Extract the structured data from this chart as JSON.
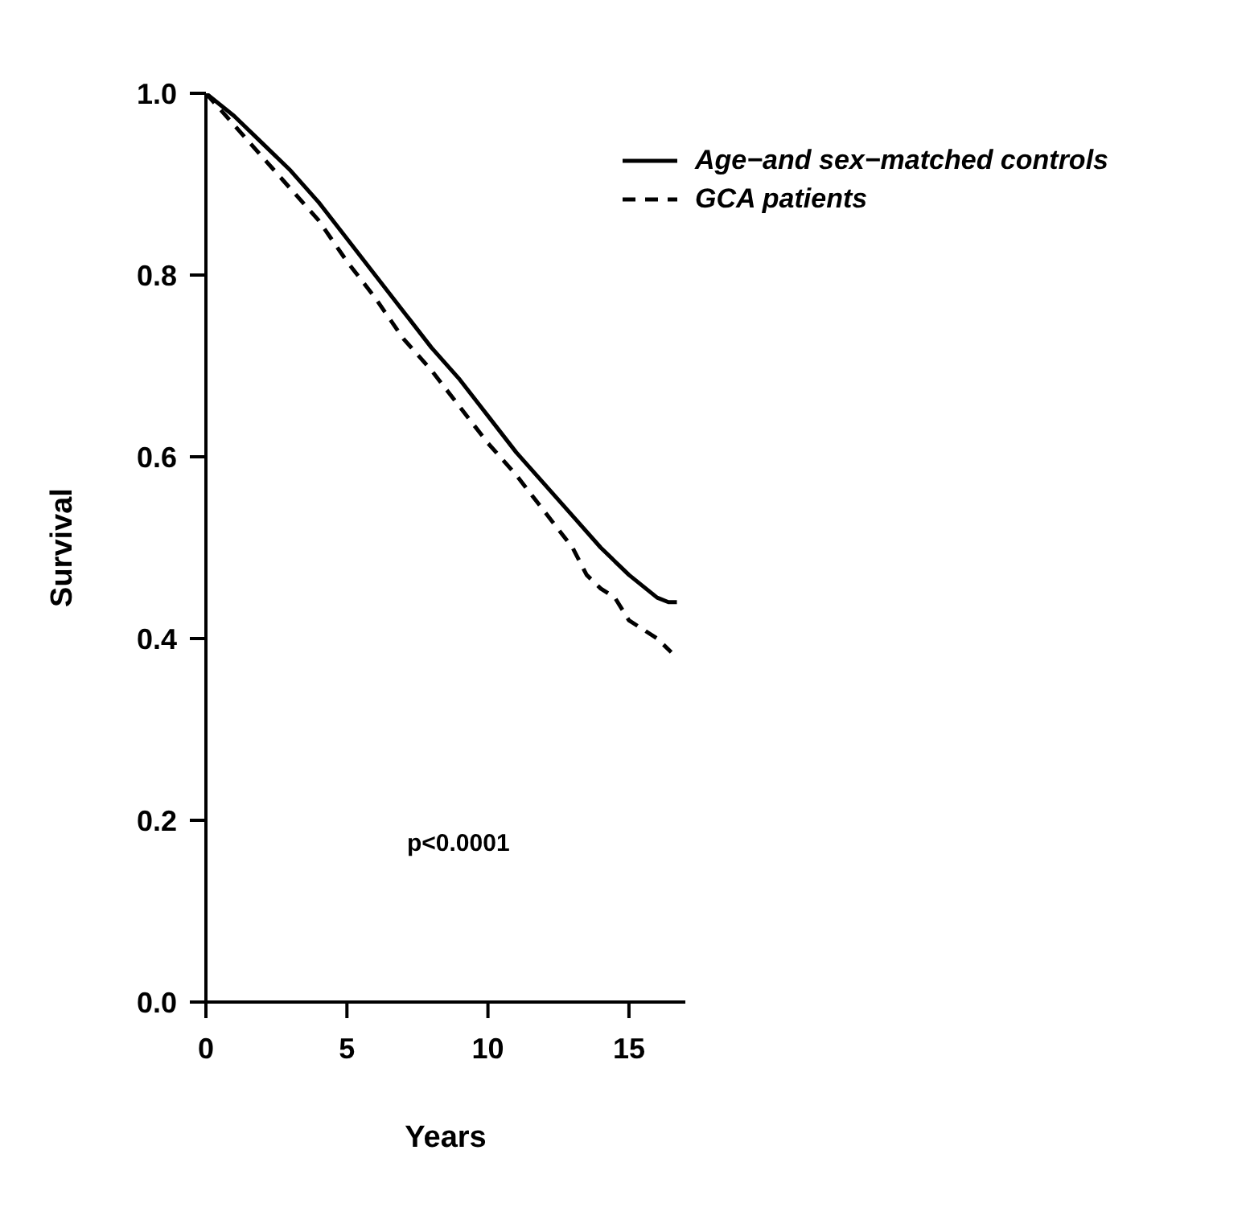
{
  "chart_data": {
    "type": "line",
    "xlabel": "Years",
    "ylabel": "Survival",
    "xlim": [
      0,
      17
    ],
    "xticks": [
      0,
      5,
      10,
      15
    ],
    "ylim": [
      0,
      1
    ],
    "yticks": [
      {
        "value": 0,
        "label": "0.0"
      },
      {
        "value": 0.2,
        "label": "0.2"
      },
      {
        "value": 0.4,
        "label": "0.4"
      },
      {
        "value": 0.6,
        "label": "0.6"
      },
      {
        "value": 0.8,
        "label": "0.8"
      },
      {
        "value": 1,
        "label": "1.0"
      }
    ],
    "grid": false,
    "legend": "top right",
    "marker": "none",
    "annotations": [
      "p<0.0001"
    ],
    "series": [
      {
        "name": "Age−and sex−matched controls",
        "color": "#000000",
        "line_style": "solid",
        "x": [
          0,
          1,
          2,
          3,
          4,
          5,
          6,
          7,
          8,
          9,
          10,
          11,
          12,
          13,
          14,
          15,
          16,
          16.4,
          16.7
        ],
        "values": [
          1.0,
          0.975,
          0.945,
          0.915,
          0.88,
          0.84,
          0.8,
          0.76,
          0.72,
          0.685,
          0.645,
          0.605,
          0.57,
          0.535,
          0.5,
          0.47,
          0.445,
          0.44,
          0.44
        ]
      },
      {
        "name": "GCA patients",
        "color": "#000000",
        "line_style": "dashed",
        "x": [
          0,
          1,
          2,
          3,
          4,
          5,
          6,
          7,
          8,
          9,
          10,
          11,
          12,
          13,
          13.5,
          14,
          14.5,
          15,
          16,
          16.5
        ],
        "values": [
          1.0,
          0.965,
          0.93,
          0.895,
          0.86,
          0.815,
          0.775,
          0.73,
          0.695,
          0.655,
          0.615,
          0.58,
          0.54,
          0.5,
          0.47,
          0.455,
          0.445,
          0.42,
          0.4,
          0.385
        ]
      }
    ]
  }
}
